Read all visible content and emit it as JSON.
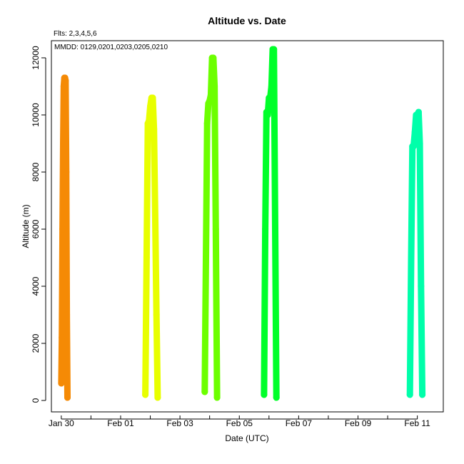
{
  "chart_data": {
    "type": "scatter",
    "title": "Altitude  vs. Date",
    "annotations": {
      "flights": "Flts: 2,3,4,5,6",
      "mmdd": "MMDD: 0129,0201,0203,0205,0210"
    },
    "xlabel": "Date (UTC)",
    "ylabel": "Altitude (m)",
    "x_axis_type": "date",
    "xlim": [
      "2024-01-29T16:00",
      "2024-02-11T21:00"
    ],
    "ylim": [
      -400,
      12600
    ],
    "x_ticks": [
      {
        "date": "2024-01-30",
        "label": "Jan 30"
      },
      {
        "date": "2024-02-01",
        "label": "Feb 01"
      },
      {
        "date": "2024-02-03",
        "label": "Feb 03"
      },
      {
        "date": "2024-02-05",
        "label": "Feb 05"
      },
      {
        "date": "2024-02-07",
        "label": "Feb 07"
      },
      {
        "date": "2024-02-09",
        "label": "Feb 09"
      },
      {
        "date": "2024-02-11",
        "label": "Feb 11"
      }
    ],
    "x_minor_ticks": [
      "2024-01-31",
      "2024-02-02",
      "2024-02-04",
      "2024-02-06",
      "2024-02-08",
      "2024-02-10"
    ],
    "y_ticks": [
      0,
      2000,
      4000,
      6000,
      8000,
      10000,
      12000
    ],
    "grid": false,
    "legend": "none",
    "series": [
      {
        "color": "#f58a05",
        "points": [
          [
            "2024-01-30T00:00",
            600
          ],
          [
            "2024-01-30T00:30",
            2200
          ],
          [
            "2024-01-30T01:00",
            6000
          ],
          [
            "2024-01-30T01:30",
            9000
          ],
          [
            "2024-01-30T02:00",
            11000
          ],
          [
            "2024-01-30T02:30",
            11300
          ],
          [
            "2024-01-30T03:00",
            11300
          ],
          [
            "2024-01-30T03:30",
            11200
          ],
          [
            "2024-01-30T04:00",
            8000
          ],
          [
            "2024-01-30T04:30",
            3000
          ],
          [
            "2024-01-30T05:00",
            100
          ]
        ]
      },
      {
        "color": "#e8ff00",
        "points": [
          [
            "2024-02-01T20:00",
            200
          ],
          [
            "2024-02-01T21:00",
            5000
          ],
          [
            "2024-02-01T22:00",
            9700
          ],
          [
            "2024-02-01T23:00",
            9800
          ],
          [
            "2024-02-02T00:00",
            10300
          ],
          [
            "2024-02-02T01:00",
            10600
          ],
          [
            "2024-02-02T02:00",
            10600
          ],
          [
            "2024-02-02T03:00",
            9500
          ],
          [
            "2024-02-02T04:00",
            6300
          ],
          [
            "2024-02-02T05:00",
            3000
          ],
          [
            "2024-02-02T06:00",
            100
          ]
        ]
      },
      {
        "color": "#6cff00",
        "points": [
          [
            "2024-02-03T20:00",
            300
          ],
          [
            "2024-02-03T21:00",
            5000
          ],
          [
            "2024-02-03T22:00",
            9700
          ],
          [
            "2024-02-03T23:00",
            10400
          ],
          [
            "2024-02-04T00:00",
            10500
          ],
          [
            "2024-02-04T01:00",
            10700
          ],
          [
            "2024-02-04T02:00",
            12000
          ],
          [
            "2024-02-04T03:00",
            12000
          ],
          [
            "2024-02-04T04:00",
            11000
          ],
          [
            "2024-02-04T05:00",
            6000
          ],
          [
            "2024-02-04T06:00",
            100
          ]
        ]
      },
      {
        "color": "#00ff2a",
        "points": [
          [
            "2024-02-05T20:00",
            200
          ],
          [
            "2024-02-05T21:00",
            6000
          ],
          [
            "2024-02-05T22:00",
            10100
          ],
          [
            "2024-02-05T23:00",
            10000
          ],
          [
            "2024-02-06T00:00",
            10600
          ],
          [
            "2024-02-06T01:00",
            10600
          ],
          [
            "2024-02-06T02:00",
            11000
          ],
          [
            "2024-02-06T03:00",
            12300
          ],
          [
            "2024-02-06T04:00",
            12300
          ],
          [
            "2024-02-06T05:00",
            6000
          ],
          [
            "2024-02-06T06:00",
            100
          ]
        ]
      },
      {
        "color": "#00ffaa",
        "points": [
          [
            "2024-02-10T18:00",
            200
          ],
          [
            "2024-02-10T19:00",
            5000
          ],
          [
            "2024-02-10T20:00",
            8900
          ],
          [
            "2024-02-10T21:00",
            8900
          ],
          [
            "2024-02-10T22:00",
            9400
          ],
          [
            "2024-02-10T23:00",
            10000
          ],
          [
            "2024-02-11T00:00",
            10000
          ],
          [
            "2024-02-11T01:00",
            10100
          ],
          [
            "2024-02-11T02:00",
            9000
          ],
          [
            "2024-02-11T03:00",
            4000
          ],
          [
            "2024-02-11T04:00",
            200
          ]
        ]
      }
    ]
  }
}
